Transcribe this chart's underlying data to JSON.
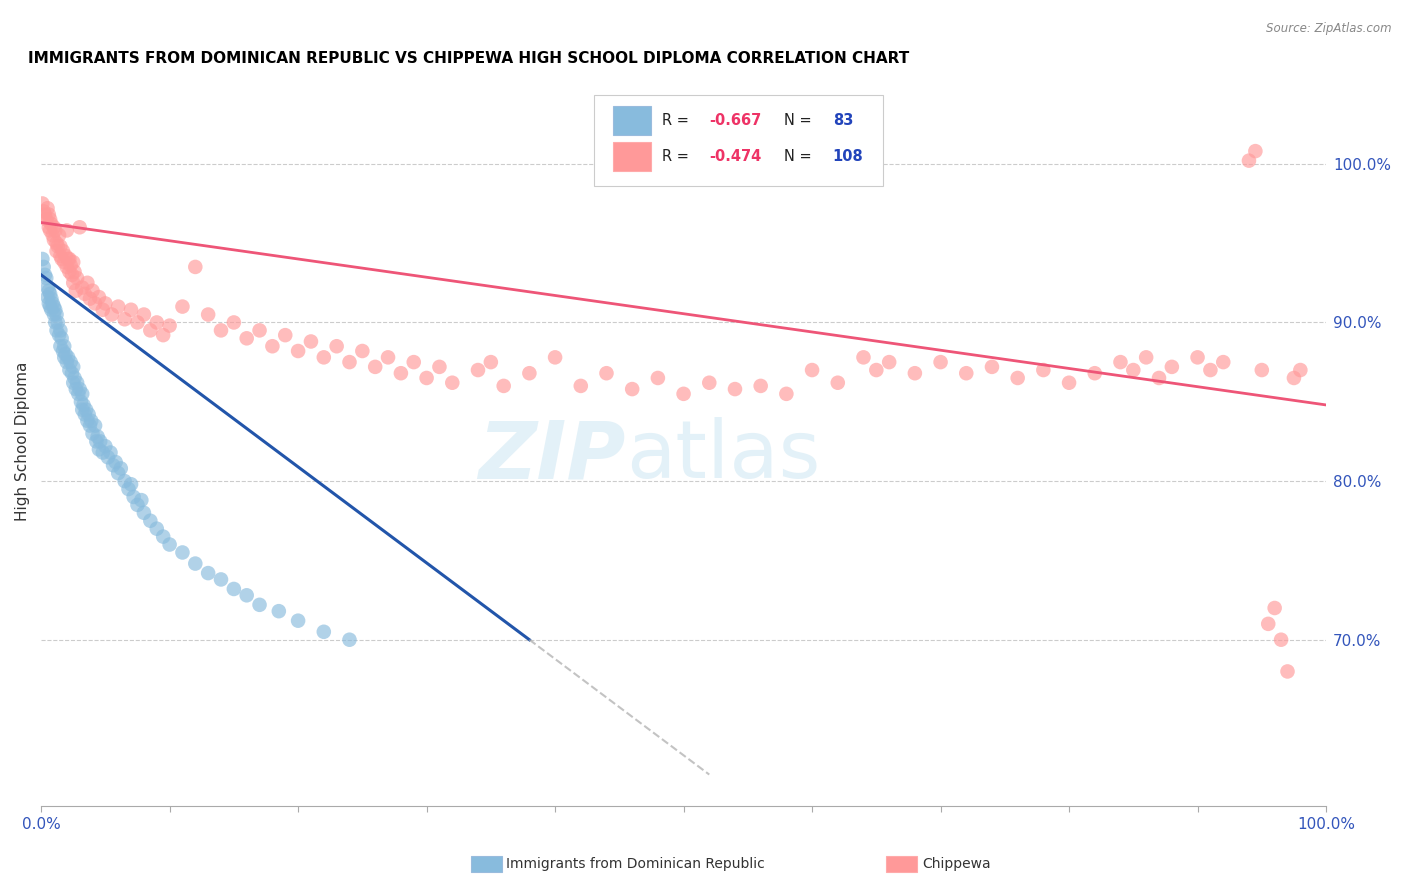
{
  "title": "IMMIGRANTS FROM DOMINICAN REPUBLIC VS CHIPPEWA HIGH SCHOOL DIPLOMA CORRELATION CHART",
  "source": "Source: ZipAtlas.com",
  "ylabel": "High School Diploma",
  "blue_color": "#88BBDD",
  "pink_color": "#FF9999",
  "blue_line_color": "#2255AA",
  "pink_line_color": "#EE5577",
  "xlim": [
    0,
    1.0
  ],
  "ylim": [
    0.595,
    1.055
  ],
  "right_yticks": [
    0.7,
    0.8,
    0.9,
    1.0
  ],
  "right_yticklabels": [
    "70.0%",
    "80.0%",
    "90.0%",
    "100.0%"
  ],
  "blue_line": {
    "x0": 0.0,
    "y0": 0.93,
    "x1": 0.38,
    "y1": 0.7
  },
  "pink_line": {
    "x0": 0.0,
    "y0": 0.963,
    "x1": 1.0,
    "y1": 0.848
  },
  "dash_line": {
    "x0": 0.38,
    "y0": 0.7,
    "x1": 0.52,
    "y1": 0.615
  },
  "blue_points": [
    [
      0.001,
      0.94
    ],
    [
      0.002,
      0.935
    ],
    [
      0.003,
      0.93
    ],
    [
      0.004,
      0.928
    ],
    [
      0.005,
      0.922
    ],
    [
      0.005,
      0.916
    ],
    [
      0.006,
      0.92
    ],
    [
      0.006,
      0.912
    ],
    [
      0.007,
      0.918
    ],
    [
      0.007,
      0.91
    ],
    [
      0.008,
      0.915
    ],
    [
      0.008,
      0.908
    ],
    [
      0.009,
      0.912
    ],
    [
      0.01,
      0.91
    ],
    [
      0.01,
      0.905
    ],
    [
      0.011,
      0.908
    ],
    [
      0.011,
      0.9
    ],
    [
      0.012,
      0.905
    ],
    [
      0.012,
      0.895
    ],
    [
      0.013,
      0.9
    ],
    [
      0.014,
      0.892
    ],
    [
      0.015,
      0.895
    ],
    [
      0.015,
      0.885
    ],
    [
      0.016,
      0.89
    ],
    [
      0.017,
      0.882
    ],
    [
      0.018,
      0.885
    ],
    [
      0.018,
      0.878
    ],
    [
      0.019,
      0.88
    ],
    [
      0.02,
      0.875
    ],
    [
      0.021,
      0.878
    ],
    [
      0.022,
      0.87
    ],
    [
      0.023,
      0.875
    ],
    [
      0.024,
      0.868
    ],
    [
      0.025,
      0.872
    ],
    [
      0.025,
      0.862
    ],
    [
      0.026,
      0.865
    ],
    [
      0.027,
      0.858
    ],
    [
      0.028,
      0.862
    ],
    [
      0.029,
      0.855
    ],
    [
      0.03,
      0.858
    ],
    [
      0.031,
      0.85
    ],
    [
      0.032,
      0.855
    ],
    [
      0.032,
      0.845
    ],
    [
      0.033,
      0.848
    ],
    [
      0.034,
      0.842
    ],
    [
      0.035,
      0.845
    ],
    [
      0.036,
      0.838
    ],
    [
      0.037,
      0.842
    ],
    [
      0.038,
      0.835
    ],
    [
      0.039,
      0.838
    ],
    [
      0.04,
      0.83
    ],
    [
      0.042,
      0.835
    ],
    [
      0.043,
      0.825
    ],
    [
      0.044,
      0.828
    ],
    [
      0.045,
      0.82
    ],
    [
      0.046,
      0.825
    ],
    [
      0.048,
      0.818
    ],
    [
      0.05,
      0.822
    ],
    [
      0.052,
      0.815
    ],
    [
      0.054,
      0.818
    ],
    [
      0.056,
      0.81
    ],
    [
      0.058,
      0.812
    ],
    [
      0.06,
      0.805
    ],
    [
      0.062,
      0.808
    ],
    [
      0.065,
      0.8
    ],
    [
      0.068,
      0.795
    ],
    [
      0.07,
      0.798
    ],
    [
      0.072,
      0.79
    ],
    [
      0.075,
      0.785
    ],
    [
      0.078,
      0.788
    ],
    [
      0.08,
      0.78
    ],
    [
      0.085,
      0.775
    ],
    [
      0.09,
      0.77
    ],
    [
      0.095,
      0.765
    ],
    [
      0.1,
      0.76
    ],
    [
      0.11,
      0.755
    ],
    [
      0.12,
      0.748
    ],
    [
      0.13,
      0.742
    ],
    [
      0.14,
      0.738
    ],
    [
      0.15,
      0.732
    ],
    [
      0.16,
      0.728
    ],
    [
      0.17,
      0.722
    ],
    [
      0.185,
      0.718
    ],
    [
      0.2,
      0.712
    ],
    [
      0.22,
      0.705
    ],
    [
      0.24,
      0.7
    ]
  ],
  "pink_points": [
    [
      0.001,
      0.975
    ],
    [
      0.002,
      0.97
    ],
    [
      0.003,
      0.968
    ],
    [
      0.004,
      0.965
    ],
    [
      0.005,
      0.972
    ],
    [
      0.006,
      0.968
    ],
    [
      0.006,
      0.96
    ],
    [
      0.007,
      0.965
    ],
    [
      0.007,
      0.958
    ],
    [
      0.008,
      0.962
    ],
    [
      0.009,
      0.955
    ],
    [
      0.01,
      0.96
    ],
    [
      0.01,
      0.952
    ],
    [
      0.011,
      0.958
    ],
    [
      0.012,
      0.95
    ],
    [
      0.012,
      0.945
    ],
    [
      0.013,
      0.948
    ],
    [
      0.014,
      0.955
    ],
    [
      0.015,
      0.942
    ],
    [
      0.015,
      0.948
    ],
    [
      0.016,
      0.94
    ],
    [
      0.017,
      0.945
    ],
    [
      0.018,
      0.938
    ],
    [
      0.019,
      0.942
    ],
    [
      0.02,
      0.958
    ],
    [
      0.02,
      0.935
    ],
    [
      0.021,
      0.94
    ],
    [
      0.022,
      0.932
    ],
    [
      0.022,
      0.94
    ],
    [
      0.023,
      0.936
    ],
    [
      0.024,
      0.93
    ],
    [
      0.025,
      0.938
    ],
    [
      0.025,
      0.925
    ],
    [
      0.026,
      0.932
    ],
    [
      0.027,
      0.92
    ],
    [
      0.028,
      0.928
    ],
    [
      0.03,
      0.96
    ],
    [
      0.032,
      0.922
    ],
    [
      0.034,
      0.918
    ],
    [
      0.036,
      0.925
    ],
    [
      0.038,
      0.915
    ],
    [
      0.04,
      0.92
    ],
    [
      0.042,
      0.912
    ],
    [
      0.045,
      0.916
    ],
    [
      0.048,
      0.908
    ],
    [
      0.05,
      0.912
    ],
    [
      0.055,
      0.905
    ],
    [
      0.06,
      0.91
    ],
    [
      0.065,
      0.902
    ],
    [
      0.07,
      0.908
    ],
    [
      0.075,
      0.9
    ],
    [
      0.08,
      0.905
    ],
    [
      0.085,
      0.895
    ],
    [
      0.09,
      0.9
    ],
    [
      0.095,
      0.892
    ],
    [
      0.1,
      0.898
    ],
    [
      0.11,
      0.91
    ],
    [
      0.12,
      0.935
    ],
    [
      0.13,
      0.905
    ],
    [
      0.14,
      0.895
    ],
    [
      0.15,
      0.9
    ],
    [
      0.16,
      0.89
    ],
    [
      0.17,
      0.895
    ],
    [
      0.18,
      0.885
    ],
    [
      0.19,
      0.892
    ],
    [
      0.2,
      0.882
    ],
    [
      0.21,
      0.888
    ],
    [
      0.22,
      0.878
    ],
    [
      0.23,
      0.885
    ],
    [
      0.24,
      0.875
    ],
    [
      0.25,
      0.882
    ],
    [
      0.26,
      0.872
    ],
    [
      0.27,
      0.878
    ],
    [
      0.28,
      0.868
    ],
    [
      0.29,
      0.875
    ],
    [
      0.3,
      0.865
    ],
    [
      0.31,
      0.872
    ],
    [
      0.32,
      0.862
    ],
    [
      0.34,
      0.87
    ],
    [
      0.35,
      0.875
    ],
    [
      0.36,
      0.86
    ],
    [
      0.38,
      0.868
    ],
    [
      0.4,
      0.878
    ],
    [
      0.42,
      0.86
    ],
    [
      0.44,
      0.868
    ],
    [
      0.46,
      0.858
    ],
    [
      0.48,
      0.865
    ],
    [
      0.5,
      0.855
    ],
    [
      0.52,
      0.862
    ],
    [
      0.54,
      0.858
    ],
    [
      0.56,
      0.86
    ],
    [
      0.58,
      0.855
    ],
    [
      0.6,
      0.87
    ],
    [
      0.62,
      0.862
    ],
    [
      0.64,
      0.878
    ],
    [
      0.65,
      0.87
    ],
    [
      0.66,
      0.875
    ],
    [
      0.68,
      0.868
    ],
    [
      0.7,
      0.875
    ],
    [
      0.72,
      0.868
    ],
    [
      0.74,
      0.872
    ],
    [
      0.76,
      0.865
    ],
    [
      0.78,
      0.87
    ],
    [
      0.8,
      0.862
    ],
    [
      0.82,
      0.868
    ],
    [
      0.84,
      0.875
    ],
    [
      0.85,
      0.87
    ],
    [
      0.86,
      0.878
    ],
    [
      0.87,
      0.865
    ],
    [
      0.88,
      0.872
    ],
    [
      0.9,
      0.878
    ],
    [
      0.91,
      0.87
    ],
    [
      0.92,
      0.875
    ],
    [
      0.94,
      1.002
    ],
    [
      0.945,
      1.008
    ],
    [
      0.95,
      0.87
    ],
    [
      0.955,
      0.71
    ],
    [
      0.96,
      0.72
    ],
    [
      0.965,
      0.7
    ],
    [
      0.97,
      0.68
    ],
    [
      0.975,
      0.865
    ],
    [
      0.98,
      0.87
    ]
  ]
}
